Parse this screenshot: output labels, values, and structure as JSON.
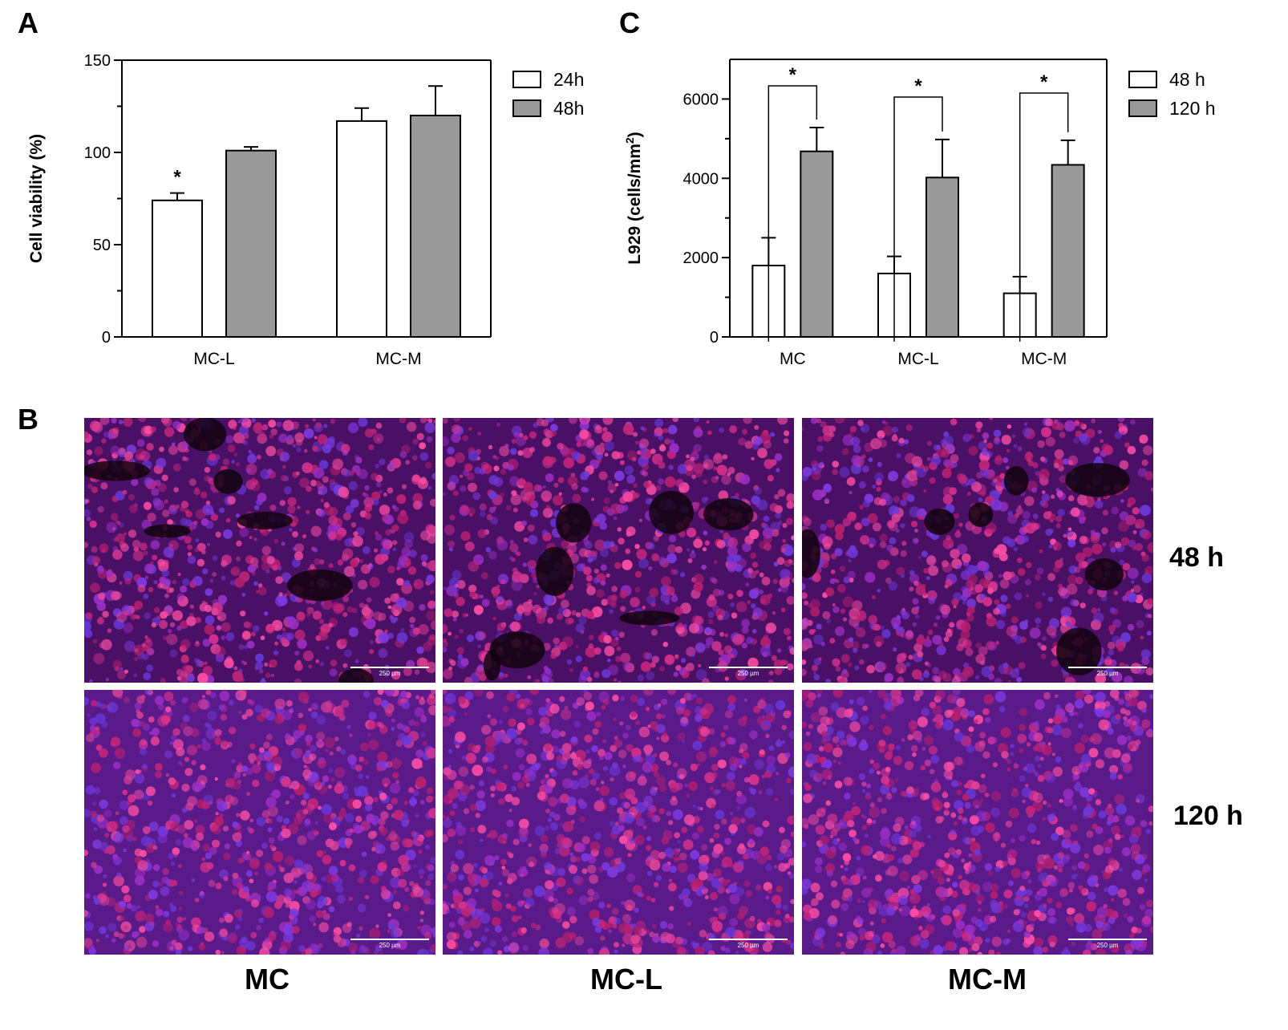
{
  "panels": {
    "a": "A",
    "b": "B",
    "c": "C"
  },
  "chart_data": [
    {
      "type": "bar",
      "panel": "A",
      "title": "",
      "xlabel": "",
      "ylabel": "Cell viability (%)",
      "ylim": [
        0,
        150
      ],
      "yticks": [
        "0",
        "50",
        "100",
        "150"
      ],
      "categories": [
        "MC-L",
        "MC-M"
      ],
      "series": [
        {
          "name": "24h",
          "color": "#ffffff",
          "values": [
            74,
            117
          ],
          "errors": [
            4,
            7
          ]
        },
        {
          "name": "48h",
          "color": "#999999",
          "values": [
            101,
            120
          ],
          "errors": [
            2,
            16
          ]
        }
      ],
      "annotations": [
        {
          "text": "*",
          "category": "MC-L",
          "series": "24h"
        }
      ],
      "legend_position": "right"
    },
    {
      "type": "bar",
      "panel": "C",
      "title": "",
      "xlabel": "",
      "ylabel_main": "L929 (cells/mm",
      "ylabel_sup": "2",
      "ylabel_end": ")",
      "ylim": [
        0,
        7000
      ],
      "yticks": [
        "0",
        "2000",
        "4000",
        "6000"
      ],
      "categories": [
        "MC",
        "MC-L",
        "MC-M"
      ],
      "series": [
        {
          "name": "48 h",
          "color": "#ffffff",
          "values": [
            1800,
            1600,
            1100
          ],
          "errors": [
            700,
            430,
            420
          ]
        },
        {
          "name": "120 h",
          "color": "#999999",
          "values": [
            4680,
            4020,
            4340
          ],
          "errors": [
            600,
            960,
            620
          ]
        }
      ],
      "significance": [
        {
          "category": "MC",
          "text": "*"
        },
        {
          "category": "MC-L",
          "text": "*"
        },
        {
          "category": "MC-M",
          "text": "*"
        }
      ],
      "legend_position": "right"
    }
  ],
  "micrographs": {
    "rows": [
      "48 h",
      "120 h"
    ],
    "columns": [
      "MC",
      "MC-L",
      "MC-M"
    ],
    "scale_bar": "250 µm"
  },
  "colors": {
    "bar_open": "#ffffff",
    "bar_gray": "#999999",
    "axis": "#000000"
  }
}
